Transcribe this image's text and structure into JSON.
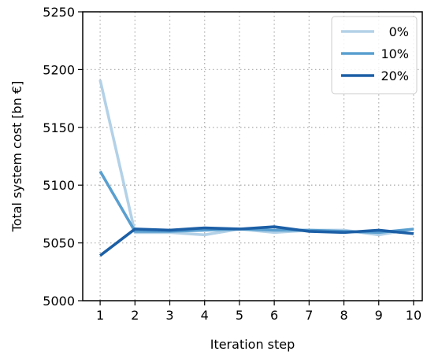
{
  "chart_data": {
    "type": "line",
    "title": "",
    "xlabel": "Iteration step",
    "ylabel": "Total system cost [bn €]",
    "x": [
      1,
      2,
      3,
      4,
      5,
      6,
      7,
      8,
      9,
      10
    ],
    "xlim": [
      0.5,
      10.25
    ],
    "ylim": [
      5000,
      5250
    ],
    "xticks": [
      1,
      2,
      3,
      4,
      5,
      6,
      7,
      8,
      9,
      10
    ],
    "yticks": [
      5000,
      5050,
      5100,
      5150,
      5200,
      5250
    ],
    "grid": true,
    "legend_position": "top-right",
    "series": [
      {
        "name": "0%",
        "color": "#b3d1e7",
        "values": [
          5191,
          5059,
          5059,
          5057,
          5062,
          5059,
          5061,
          5061,
          5057,
          5062
        ]
      },
      {
        "name": "10%",
        "color": "#5a9fcf",
        "values": [
          5112,
          5060,
          5060,
          5061,
          5062,
          5061,
          5061,
          5060,
          5059,
          5062
        ]
      },
      {
        "name": "20%",
        "color": "#1c5fa6",
        "values": [
          5039,
          5062,
          5061,
          5063,
          5062,
          5064,
          5060,
          5059,
          5061,
          5058
        ]
      }
    ]
  }
}
